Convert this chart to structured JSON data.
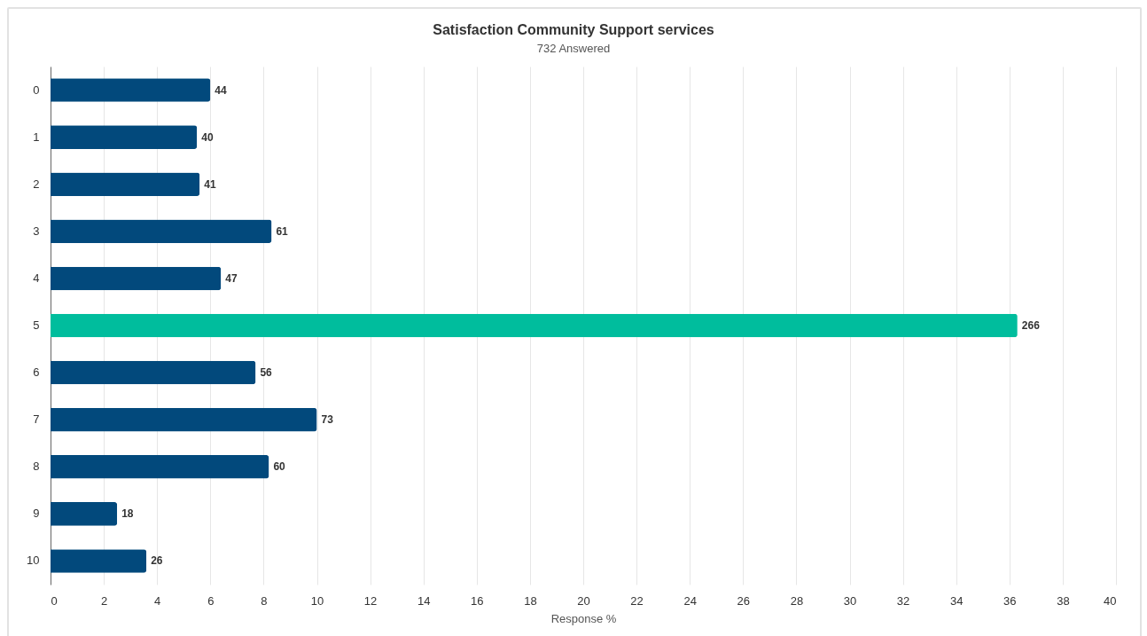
{
  "chart_data": {
    "type": "bar",
    "orientation": "horizontal",
    "title": "Satisfaction Community Support services",
    "subtitle": "732 Answered",
    "xlabel": "Response %",
    "categories": [
      "0",
      "1",
      "2",
      "3",
      "4",
      "5",
      "6",
      "7",
      "8",
      "9",
      "10"
    ],
    "values": [
      6.0,
      5.5,
      5.6,
      8.3,
      6.4,
      36.3,
      7.7,
      10.0,
      8.2,
      2.5,
      3.6
    ],
    "colors": [
      "#02497c",
      "#02497c",
      "#02497c",
      "#02497c",
      "#02497c",
      "#00bd9d",
      "#02497c",
      "#02497c",
      "#02497c",
      "#02497c",
      "#02497c"
    ],
    "annotations": [
      {
        "text": "44",
        "x": 6.0,
        "y": "0"
      },
      {
        "text": "40",
        "x": 5.5,
        "y": "1"
      },
      {
        "text": "41",
        "x": 5.6,
        "y": "2"
      },
      {
        "text": "61",
        "x": 8.3,
        "y": "3"
      },
      {
        "text": "47",
        "x": 6.4,
        "y": "4"
      },
      {
        "text": "266",
        "x": 36.3,
        "y": "5"
      },
      {
        "text": "56",
        "x": 7.7,
        "y": "6"
      },
      {
        "text": "73",
        "x": 10.0,
        "y": "7"
      },
      {
        "text": "60",
        "x": 8.2,
        "y": "8"
      },
      {
        "text": "18",
        "x": 2.5,
        "y": "9"
      },
      {
        "text": "26",
        "x": 3.6,
        "y": "10"
      }
    ],
    "xlim": [
      0,
      40
    ],
    "xticks": [
      0,
      2,
      4,
      6,
      8,
      10,
      12,
      14,
      16,
      18,
      20,
      22,
      24,
      26,
      28,
      30,
      32,
      34,
      36,
      38,
      40
    ],
    "grid": "x"
  }
}
